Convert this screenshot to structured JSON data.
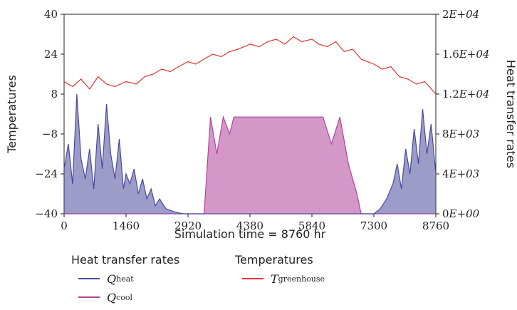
{
  "chart_data": {
    "type": "line",
    "xlabel": "Simulation time = 8760 hr",
    "ylabel_left": "Temperatures",
    "ylabel_right": "Heat transfer rates",
    "x_ticks": [
      0,
      1460,
      2920,
      4380,
      5840,
      7300,
      8760
    ],
    "xlim": [
      0,
      8760
    ],
    "y_left_ticks": [
      "40",
      "24",
      "8",
      "−8",
      "−24",
      "−40"
    ],
    "ylim_left": [
      -40,
      40
    ],
    "y_right_ticks": [
      "2E+04",
      "1.6E+04",
      "1.2E+04",
      "8E+03",
      "4E+03",
      "0E+00"
    ],
    "ylim_right": [
      0,
      20000
    ],
    "grid": false,
    "legend_position": "bottom",
    "legend_groups": [
      {
        "title": "Heat transfer rates",
        "entries": [
          {
            "symbol": "Q",
            "subscript": "heat",
            "color": "#4a4a9c"
          },
          {
            "symbol": "Q",
            "subscript": "cool",
            "color": "#b0439a"
          }
        ]
      },
      {
        "title": "Temperatures",
        "entries": [
          {
            "symbol": "T",
            "subscript": "greenhouse",
            "color": "#e8322e"
          }
        ]
      }
    ],
    "series": [
      {
        "name": "T greenhouse",
        "axis": "left",
        "color": "#e8322e",
        "x": [
          0,
          200,
          400,
          600,
          800,
          1000,
          1200,
          1460,
          1700,
          1900,
          2100,
          2300,
          2500,
          2700,
          2920,
          3100,
          3300,
          3500,
          3700,
          3900,
          4100,
          4380,
          4600,
          4800,
          5000,
          5200,
          5400,
          5600,
          5840,
          6000,
          6200,
          6400,
          6600,
          6800,
          7000,
          7300,
          7500,
          7700,
          7900,
          8100,
          8300,
          8500,
          8760
        ],
        "y": [
          13,
          11,
          14,
          10,
          15,
          12,
          11,
          13,
          12,
          15,
          16,
          18,
          17,
          19,
          21,
          20,
          22,
          24,
          23,
          25,
          26,
          28,
          27,
          29,
          30,
          28,
          31,
          29,
          30,
          28,
          27,
          29,
          25,
          26,
          22,
          20,
          18,
          19,
          15,
          14,
          12,
          13,
          8
        ]
      },
      {
        "name": "Q heat",
        "axis": "right",
        "color": "#4a4a9c",
        "x": [
          0,
          100,
          200,
          300,
          400,
          500,
          600,
          700,
          800,
          900,
          1000,
          1100,
          1200,
          1300,
          1400,
          1460,
          1550,
          1650,
          1750,
          1850,
          1950,
          2050,
          2150,
          2250,
          2400,
          2600,
          2800,
          6800,
          7000,
          7300,
          7450,
          7600,
          7750,
          7850,
          7950,
          8050,
          8150,
          8250,
          8350,
          8450,
          8550,
          8650,
          8760
        ],
        "y": [
          4500,
          7000,
          3000,
          12000,
          5500,
          3500,
          6500,
          2500,
          9000,
          4500,
          11000,
          6000,
          3500,
          7500,
          2500,
          4000,
          3000,
          4500,
          2000,
          3500,
          1500,
          2500,
          800,
          1500,
          500,
          200,
          0,
          0,
          0,
          0,
          500,
          1500,
          3000,
          5000,
          2500,
          6500,
          4000,
          8500,
          5000,
          10500,
          6000,
          9000,
          4000
        ]
      },
      {
        "name": "Q cool",
        "axis": "right",
        "color": "#b0439a",
        "x": [
          0,
          2300,
          3300,
          3450,
          3600,
          3750,
          3900,
          4000,
          4380,
          4800,
          5200,
          5600,
          5840,
          6100,
          6300,
          6500,
          6700,
          6900,
          7000,
          8760
        ],
        "y": [
          0,
          0,
          0,
          9700,
          6000,
          9700,
          8000,
          9700,
          9700,
          9700,
          9700,
          9700,
          9700,
          9700,
          7000,
          9700,
          5000,
          2000,
          0,
          0
        ]
      }
    ]
  }
}
